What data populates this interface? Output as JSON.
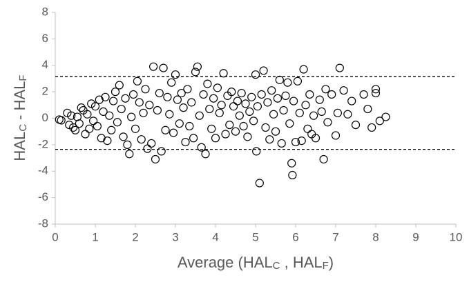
{
  "chart_data": {
    "type": "scatter",
    "x_label": [
      "Average (HAL",
      "C",
      " , HAL",
      "F",
      ")"
    ],
    "y_label": [
      "HAL",
      "C",
      " - HAL",
      "F"
    ],
    "xlim": [
      0,
      10
    ],
    "xticks": [
      0,
      1,
      2,
      3,
      4,
      5,
      6,
      7,
      8,
      9,
      10
    ],
    "ylim": [
      -8,
      8
    ],
    "yticks": [
      -8,
      -6,
      -4,
      -2,
      0,
      2,
      4,
      6,
      8
    ],
    "reference_lines": [
      3.15,
      -2.35
    ],
    "color": "#000000",
    "x": [
      0.1,
      0.15,
      0.3,
      0.35,
      0.4,
      0.45,
      0.5,
      0.55,
      0.6,
      0.65,
      0.7,
      0.75,
      0.8,
      0.85,
      0.9,
      0.95,
      1.0,
      1.05,
      1.1,
      1.15,
      1.2,
      1.25,
      1.3,
      1.35,
      1.4,
      1.45,
      1.5,
      1.55,
      1.6,
      1.65,
      1.7,
      1.75,
      1.8,
      1.85,
      1.9,
      1.95,
      2.0,
      2.05,
      2.1,
      2.15,
      2.2,
      2.25,
      2.3,
      2.35,
      2.4,
      2.45,
      2.5,
      2.55,
      2.6,
      2.65,
      2.7,
      2.75,
      2.8,
      2.85,
      2.9,
      2.95,
      3.0,
      3.05,
      3.1,
      3.15,
      3.2,
      3.25,
      3.3,
      3.35,
      3.4,
      3.45,
      3.5,
      3.55,
      3.6,
      3.65,
      3.7,
      3.75,
      3.8,
      3.85,
      3.9,
      3.95,
      4.0,
      4.05,
      4.1,
      4.15,
      4.2,
      4.25,
      4.3,
      4.35,
      4.4,
      4.45,
      4.5,
      4.55,
      4.6,
      4.65,
      4.7,
      4.75,
      4.8,
      4.85,
      4.9,
      4.95,
      5.0,
      5.02,
      5.05,
      5.1,
      5.15,
      5.2,
      5.25,
      5.3,
      5.35,
      5.4,
      5.45,
      5.5,
      5.55,
      5.6,
      5.65,
      5.7,
      5.75,
      5.8,
      5.85,
      5.9,
      5.92,
      5.95,
      6.0,
      6.05,
      6.1,
      6.15,
      6.2,
      6.25,
      6.3,
      6.35,
      6.4,
      6.45,
      6.5,
      6.6,
      6.65,
      6.7,
      6.75,
      6.8,
      6.9,
      7.0,
      7.05,
      7.1,
      7.2,
      7.3,
      7.4,
      7.5,
      7.7,
      7.8,
      7.9,
      8.0,
      8.0,
      8.1,
      8.25
    ],
    "y": [
      -0.1,
      -0.15,
      0.4,
      -0.5,
      0.2,
      -0.7,
      -0.9,
      0.1,
      -0.4,
      0.8,
      0.6,
      -1.2,
      0.3,
      -0.8,
      1.1,
      -0.2,
      0.9,
      -0.6,
      1.4,
      -1.5,
      0.5,
      1.6,
      -1.7,
      0.2,
      -0.9,
      1.3,
      2.0,
      -0.3,
      2.5,
      0.7,
      -1.4,
      1.5,
      -2.0,
      -2.7,
      0.1,
      1.8,
      -0.8,
      2.8,
      1.2,
      -1.6,
      0.4,
      2.2,
      -2.3,
      1.0,
      -1.9,
      3.9,
      -3.1,
      0.6,
      1.9,
      -2.5,
      3.8,
      -0.9,
      1.6,
      0.3,
      2.7,
      -1.1,
      3.3,
      1.4,
      -0.4,
      1.9,
      0.8,
      -1.8,
      2.2,
      -0.6,
      1.2,
      -1.5,
      3.5,
      3.9,
      0.2,
      -2.2,
      1.8,
      -2.7,
      2.6,
      0.7,
      -0.8,
      1.5,
      -1.5,
      2.3,
      0.4,
      1.0,
      3.4,
      -1.2,
      1.7,
      -0.5,
      2.0,
      0.9,
      -1.0,
      1.3,
      0.2,
      1.9,
      -0.6,
      1.1,
      -1.4,
      0.5,
      1.6,
      -0.2,
      3.3,
      -2.5,
      0.9,
      -4.9,
      1.8,
      3.6,
      -0.7,
      1.2,
      -1.6,
      2.1,
      0.3,
      -1.0,
      1.5,
      2.9,
      -1.9,
      0.6,
      1.7,
      2.7,
      -0.4,
      -3.4,
      -4.3,
      1.3,
      -1.8,
      2.8,
      0.4,
      -1.7,
      3.7,
      1.0,
      -0.8,
      1.8,
      -1.2,
      0.2,
      -1.5,
      1.4,
      0.5,
      -3.1,
      2.2,
      -0.3,
      1.8,
      -1.3,
      0.4,
      3.8,
      2.1,
      0.3,
      1.3,
      -0.5,
      1.8,
      0.7,
      -0.7,
      2.2,
      1.9,
      -0.2,
      0.1
    ]
  }
}
